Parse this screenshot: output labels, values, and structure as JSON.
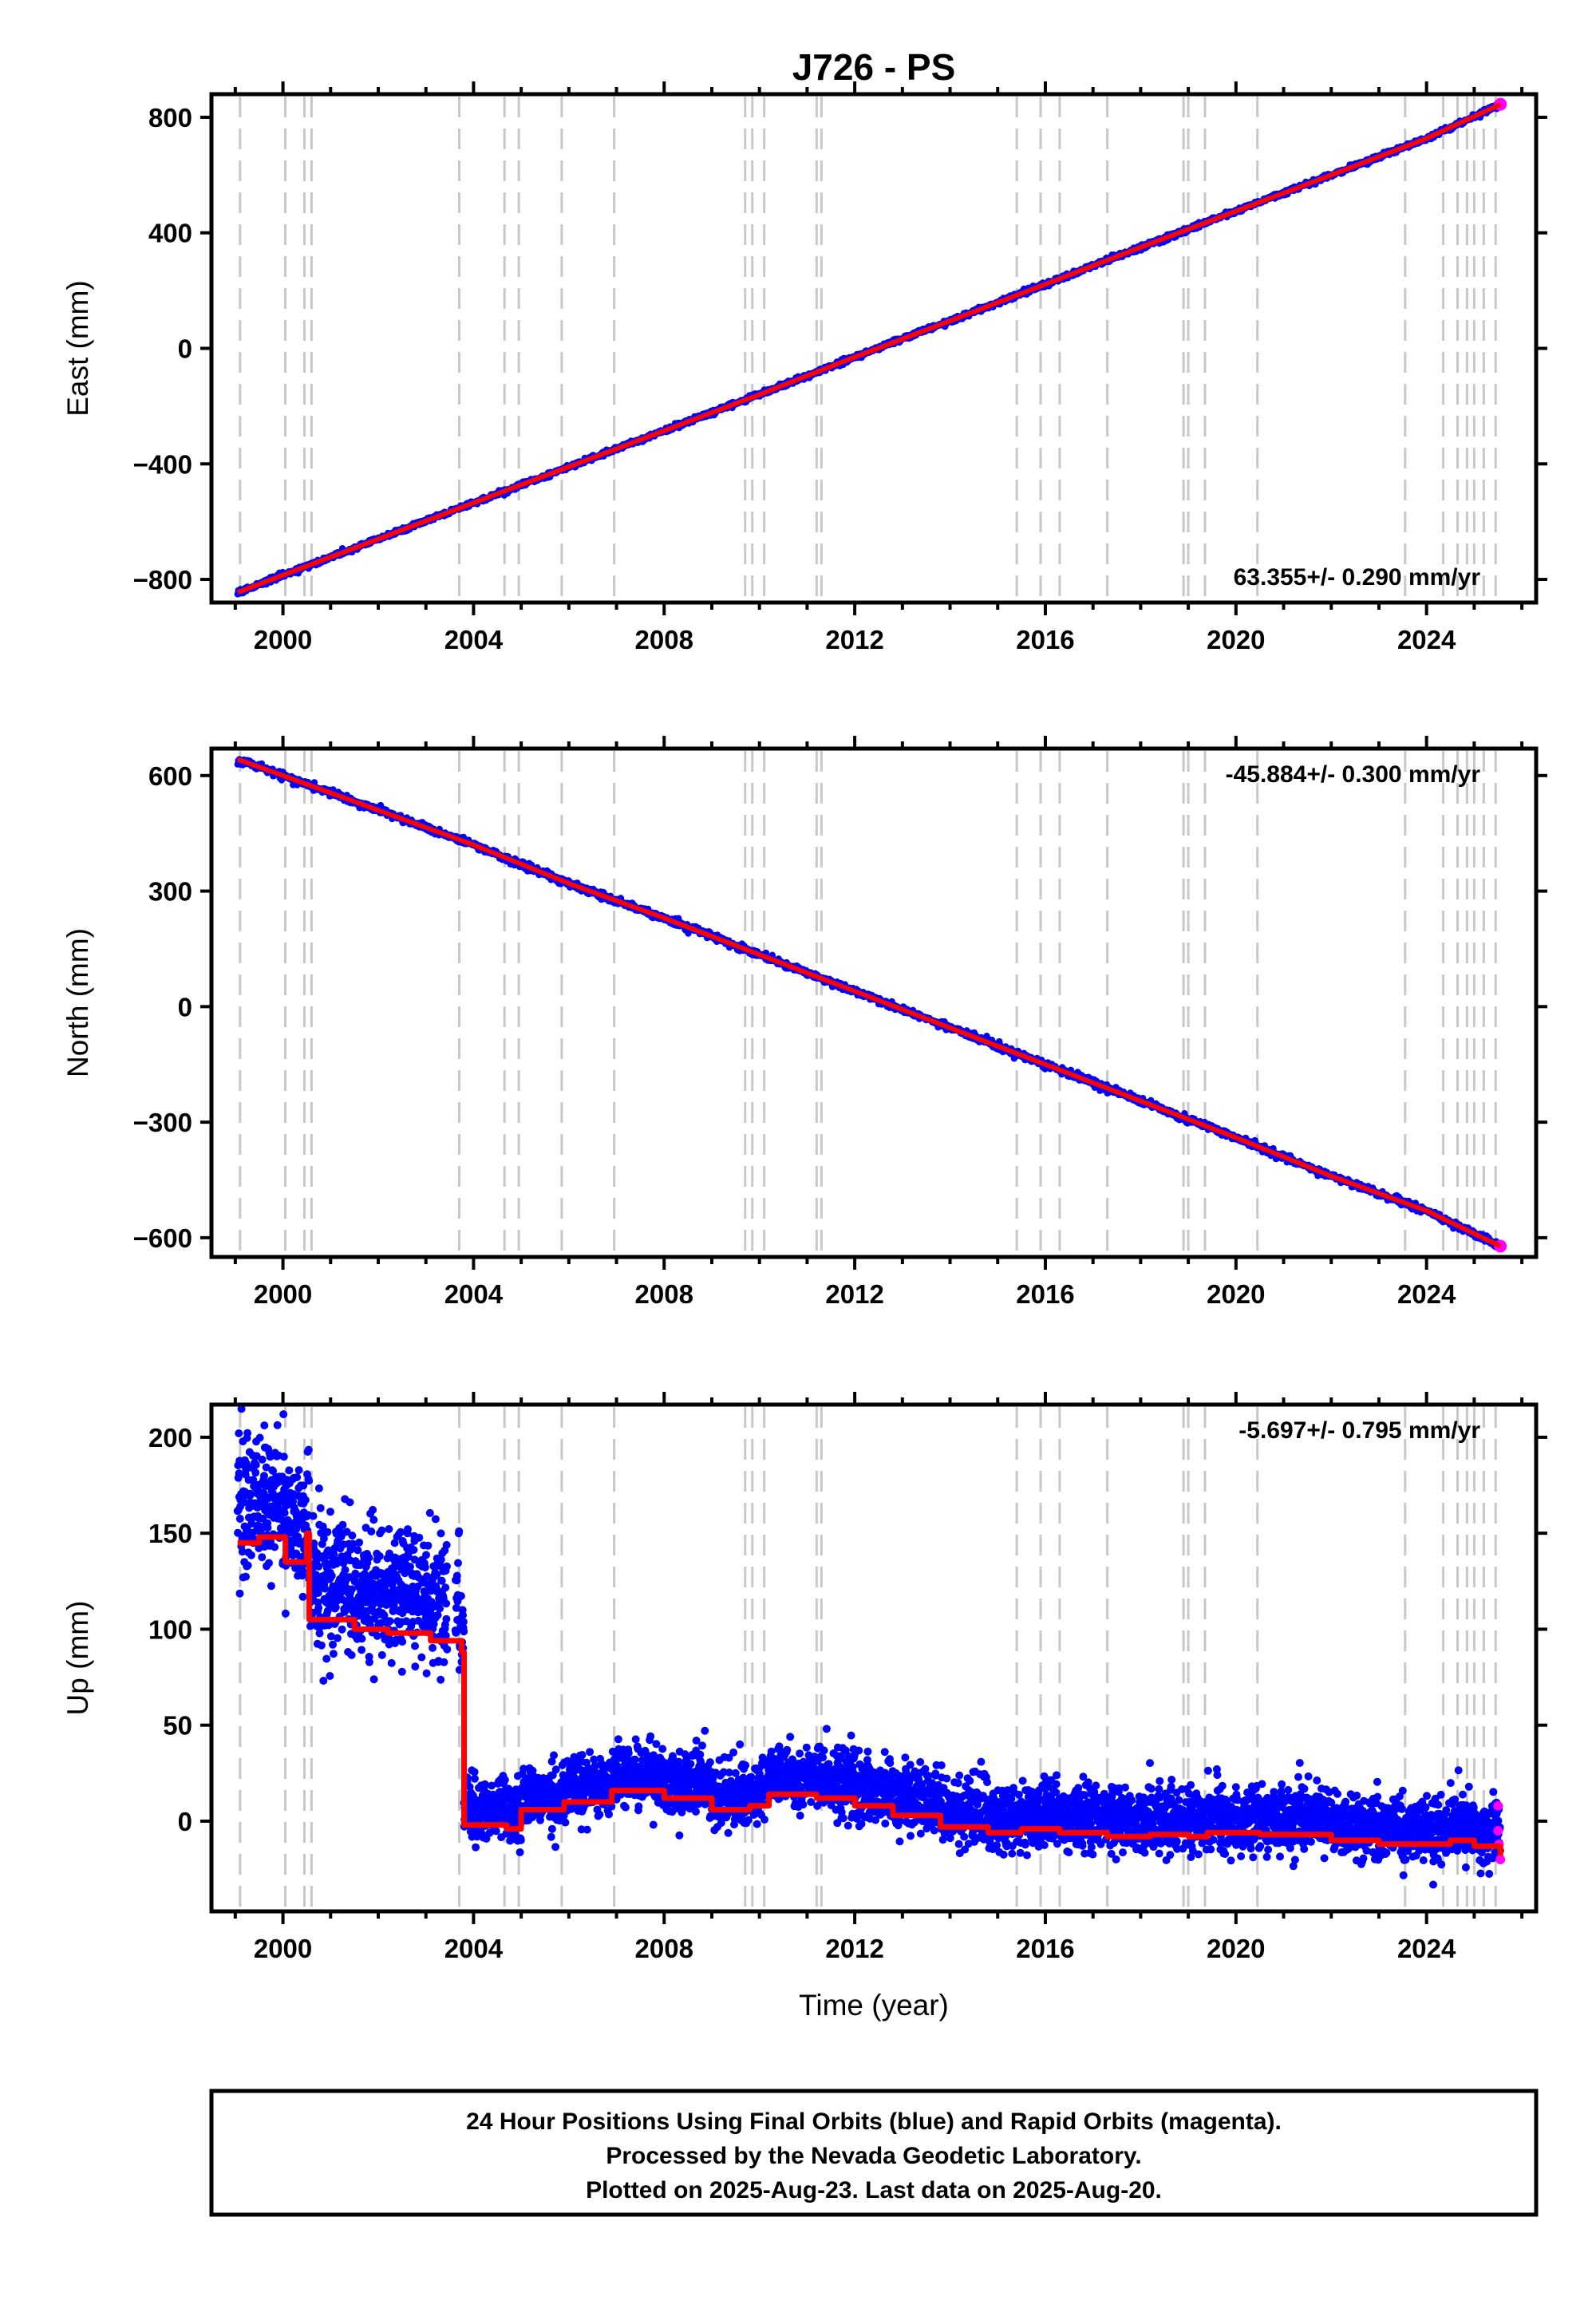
{
  "title": "J726 - PS",
  "colors": {
    "final": "#0000ff",
    "rapid": "#ff00ff",
    "model": "#ff0000",
    "breaks": "#c8c8c8"
  },
  "chart_data": [
    {
      "type": "scatter",
      "ylabel": "East (mm)",
      "xlim": [
        1998.5,
        2026.3
      ],
      "ylim": [
        -880,
        880
      ],
      "yticks": [
        -800,
        -400,
        0,
        400,
        800
      ],
      "xticks": [
        2000,
        2004,
        2008,
        2012,
        2016,
        2020,
        2024
      ],
      "rate": "63.355+/- 0.290 mm/yr",
      "rate_pos": "bottom-right",
      "series": [
        {
          "x": [
            1999.05,
            2000,
            2002,
            2004,
            2006,
            2008,
            2010,
            2012,
            2014,
            2016,
            2018,
            2020,
            2022,
            2024,
            2025.55
          ],
          "values": [
            -845,
            -785,
            -660,
            -535,
            -410,
            -285,
            -160,
            -30,
            95,
            222,
            350,
            475,
            600,
            727,
            845
          ]
        }
      ]
    },
    {
      "type": "scatter",
      "ylabel": "North (mm)",
      "xlim": [
        1998.5,
        2026.3
      ],
      "ylim": [
        -650,
        670
      ],
      "yticks": [
        -600,
        -300,
        0,
        300,
        600
      ],
      "xticks": [
        2000,
        2004,
        2008,
        2012,
        2016,
        2020,
        2024
      ],
      "rate": "-45.884+/- 0.300 mm/yr",
      "rate_pos": "top-right",
      "series": [
        {
          "x": [
            1999.05,
            2000,
            2002,
            2004,
            2006,
            2008,
            2010,
            2012,
            2014,
            2016,
            2018,
            2020,
            2022,
            2024,
            2025.55
          ],
          "values": [
            642,
            600,
            510,
            420,
            320,
            230,
            135,
            40,
            -55,
            -150,
            -245,
            -340,
            -440,
            -530,
            -622
          ]
        }
      ]
    },
    {
      "type": "scatter",
      "ylabel": "Up (mm)",
      "xlabel": "Time (year)",
      "xlim": [
        1998.5,
        2026.3
      ],
      "ylim": [
        -47,
        217
      ],
      "yticks": [
        0,
        50,
        100,
        150,
        200
      ],
      "xticks": [
        2000,
        2004,
        2008,
        2012,
        2016,
        2020,
        2024
      ],
      "rate": "-5.697+/- 0.795 mm/yr",
      "rate_pos": "top-right",
      "series": [
        {
          "x": [
            1999.05,
            1999.5,
            2000.05,
            2000.5,
            2000.55,
            2001.5,
            2002.2,
            2003.1,
            2003.75,
            2003.8,
            2004.7,
            2005.0,
            2005.9,
            2006.9,
            2008.0,
            2009.0,
            2009.8,
            2010.2,
            2011.2,
            2012.0,
            2012.8,
            2013.8,
            2014.8,
            2015.5,
            2016.3,
            2017.3,
            2018.2,
            2019.0,
            2019.4,
            2020.5,
            2021.3,
            2022.0,
            2023.0,
            2023.6,
            2024.5,
            2025.0,
            2025.55
          ],
          "values": [
            145,
            148,
            135,
            150,
            105,
            100,
            98,
            94,
            88,
            -2,
            -4,
            6,
            10,
            16,
            12,
            6,
            8,
            14,
            12,
            8,
            3,
            -3,
            -6,
            -4,
            -6,
            -8,
            -7,
            -8,
            -6,
            -7,
            -7,
            -10,
            -12,
            -12,
            -10,
            -13,
            -18
          ]
        }
      ],
      "rapid_points": [
        {
          "x": 2025.5,
          "y": 8
        },
        {
          "x": 2025.5,
          "y": -5
        },
        {
          "x": 2025.52,
          "y": -12
        },
        {
          "x": 2025.55,
          "y": -20
        }
      ]
    }
  ],
  "equipment_changes": [
    1999.1,
    2000.05,
    2000.45,
    2000.6,
    2003.7,
    2004.65,
    2004.95,
    2005.85,
    2006.95,
    2009.7,
    2009.85,
    2010.1,
    2011.2,
    2011.3,
    2015.4,
    2015.9,
    2016.3,
    2017.3,
    2018.9,
    2019.0,
    2019.35,
    2020.45,
    2023.55,
    2024.35,
    2024.65,
    2024.85,
    2025.0,
    2025.2,
    2025.45
  ],
  "footer": {
    "line1": "24 Hour Positions Using Final Orbits (blue) and Rapid Orbits (magenta).",
    "line2": "Processed by the Nevada Geodetic Laboratory.",
    "line3": "Plotted on 2025-Aug-23. Last data on 2025-Aug-20."
  }
}
